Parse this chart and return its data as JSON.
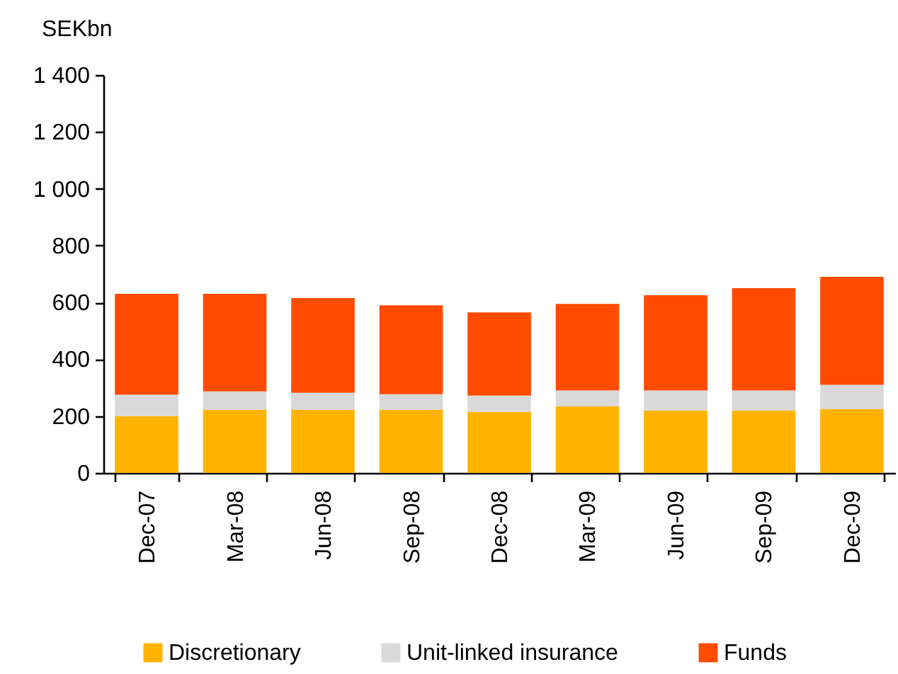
{
  "chart_data": {
    "type": "bar",
    "stacked": true,
    "ylabel": "SEKbn",
    "categories": [
      "Dec-07",
      "Mar-08",
      "Jun-08",
      "Sep-08",
      "Dec-08",
      "Mar-09",
      "Jun-09",
      "Sep-09",
      "Dec-09"
    ],
    "series": [
      {
        "name": "Discretionary",
        "color": "#ffb300",
        "values": [
          200,
          222,
          222,
          222,
          215,
          235,
          220,
          220,
          225
        ]
      },
      {
        "name": "Unit-linked insurance",
        "color": "#d9d9d9",
        "values": [
          75,
          65,
          60,
          55,
          57,
          55,
          70,
          70,
          85
        ]
      },
      {
        "name": "Funds",
        "color": "#ff4b00",
        "values": [
          355,
          343,
          333,
          313,
          293,
          305,
          335,
          360,
          380
        ]
      }
    ],
    "ylim": [
      0,
      1400
    ],
    "yticks": [
      0,
      200,
      400,
      600,
      800,
      {
        "value": 1000,
        "label": "1 000"
      },
      {
        "value": 1200,
        "label": "1 200"
      },
      {
        "value": 1400,
        "label": "1 400"
      }
    ],
    "legend": "bottom"
  }
}
